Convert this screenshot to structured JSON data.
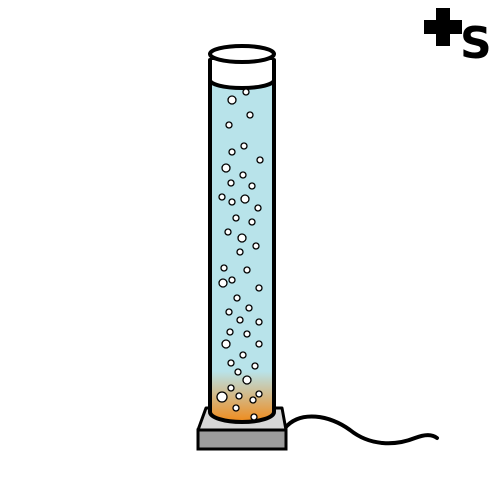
{
  "logo": {
    "letter": "S",
    "icon": "plus-s-logo-icon"
  },
  "illustration": {
    "subject": "bubble-tube-lamp-icon",
    "colors": {
      "outline": "#000000",
      "water": "#b8e3ea",
      "glow_top": "#b8e3ea",
      "glow_bottom": "#f08a1a",
      "cap": "#ffffff",
      "base_top": "#d7d7d7",
      "base_front": "#9c9c9c",
      "bubble": "#ffffff",
      "cable": "#000000"
    }
  }
}
